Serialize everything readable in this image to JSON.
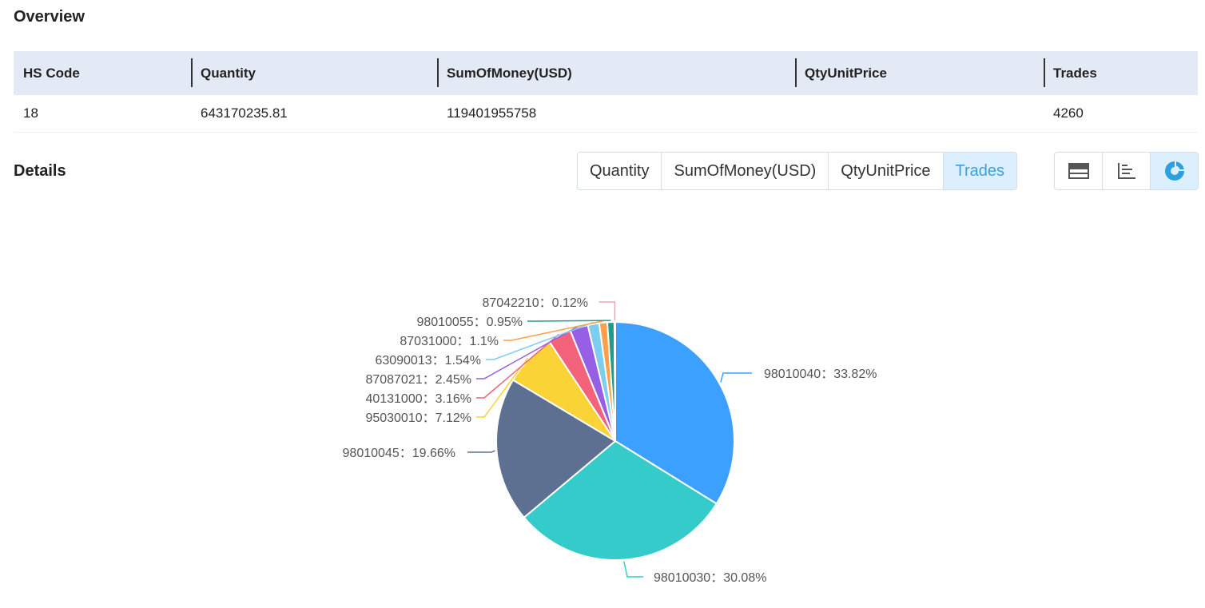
{
  "overview": {
    "title": "Overview",
    "headers": [
      "HS Code",
      "Quantity",
      "SumOfMoney(USD)",
      "QtyUnitPrice",
      "Trades"
    ],
    "row": [
      "18",
      "643170235.81",
      "119401955758",
      "",
      "4260"
    ]
  },
  "details": {
    "title": "Details",
    "metric_tabs": [
      "Quantity",
      "SumOfMoney(USD)",
      "QtyUnitPrice",
      "Trades"
    ],
    "active_metric": "Trades",
    "view_icons": [
      "table-view-icon",
      "bar-chart-icon",
      "pie-chart-icon"
    ],
    "active_view": "pie-chart-icon"
  },
  "chart_data": {
    "type": "pie",
    "slices": [
      {
        "label": "98010040",
        "percent": 33.82,
        "color": "#3ba0ff"
      },
      {
        "label": "98010030",
        "percent": 30.08,
        "color": "#36cbcb"
      },
      {
        "label": "98010045",
        "percent": 19.66,
        "color": "#5e7092"
      },
      {
        "label": "95030010",
        "percent": 7.12,
        "color": "#fad337"
      },
      {
        "label": "40131000",
        "percent": 3.16,
        "color": "#f2637b"
      },
      {
        "label": "87087021",
        "percent": 2.45,
        "color": "#975fe4"
      },
      {
        "label": "63090013",
        "percent": 1.54,
        "color": "#7dcdf0"
      },
      {
        "label": "87031000",
        "percent": 1.1,
        "color": "#ff9f4a"
      },
      {
        "label": "98010055",
        "percent": 0.95,
        "color": "#229a88"
      },
      {
        "label": "87042210",
        "percent": 0.12,
        "color": "#f5a0b5"
      }
    ],
    "label_separator": "："
  }
}
